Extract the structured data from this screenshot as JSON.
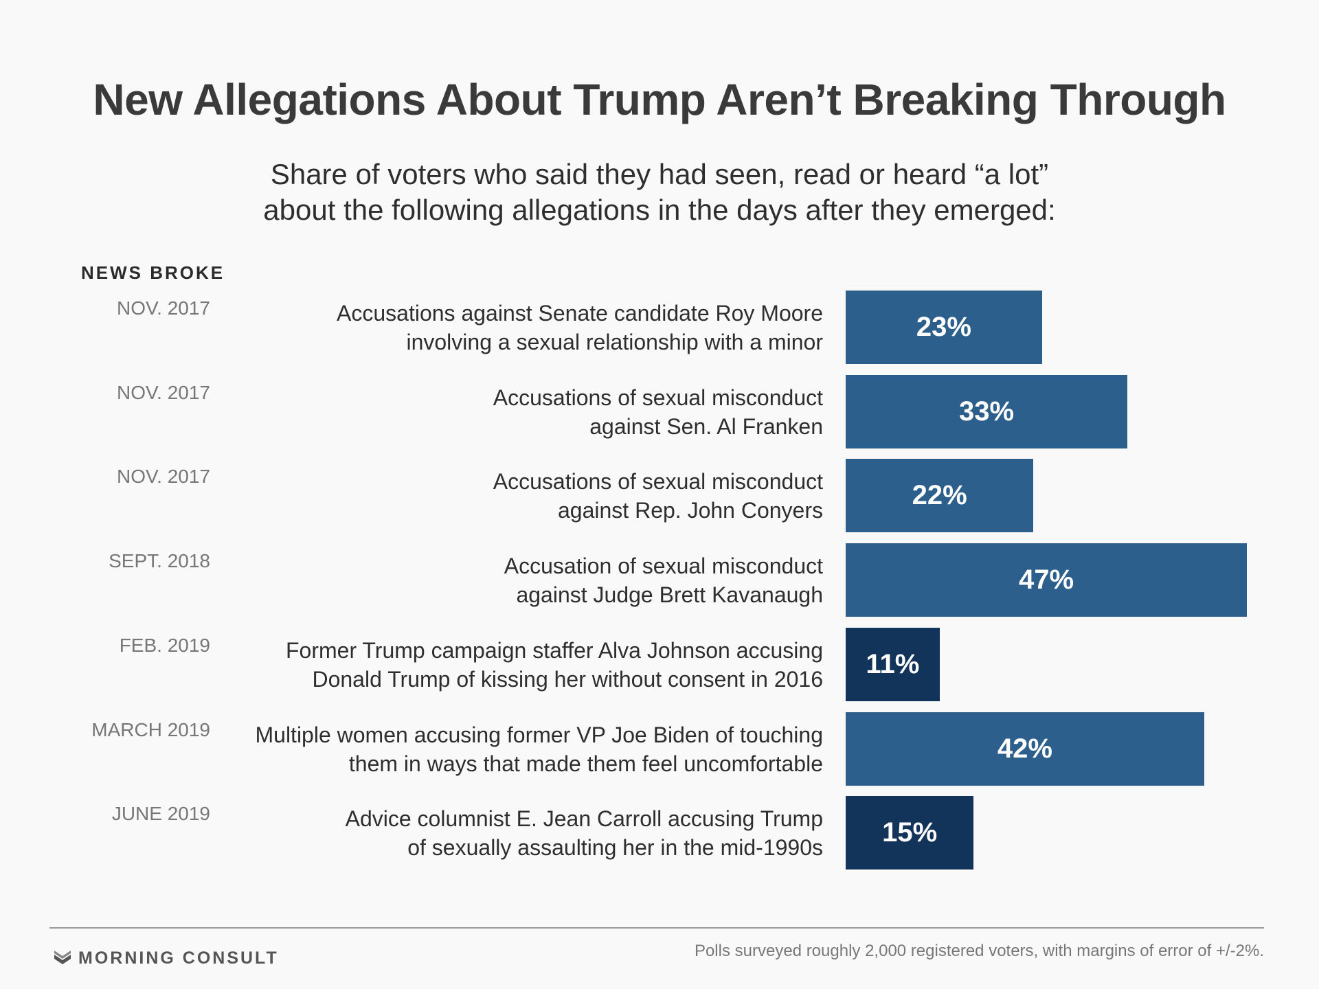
{
  "title": "New Allegations About Trump Aren’t Breaking Through",
  "subtitle_lines": [
    "Share of voters who said they had seen, read or heard “a lot”",
    "about the following allegations in the days after they emerged:"
  ],
  "column_header": "NEWS BROKE",
  "colors": {
    "bar": "#2d5f8d",
    "bar_trump": "#13345a",
    "background": "#f9f9f9"
  },
  "chart_data": {
    "type": "bar",
    "orientation": "horizontal",
    "title": "New Allegations About Trump Aren’t Breaking Through",
    "xlim": [
      0,
      50
    ],
    "grid": false,
    "categories": [
      "Accusations against Senate candidate Roy Moore involving a sexual relationship with a minor",
      "Accusations of sexual misconduct against Sen. Al Franken",
      "Accusations of sexual misconduct against Rep. John Conyers",
      "Accusation of sexual misconduct against Judge Brett Kavanaugh",
      "Former Trump campaign staffer Alva Johnson accusing Donald Trump of kissing her without consent in 2016",
      "Multiple women accusing former VP Joe Biden of touching them in ways that made them feel uncomfortable",
      "Advice columnist E. Jean Carroll accusing Trump of sexually assaulting her in the mid-1990s"
    ],
    "values": [
      23,
      33,
      22,
      47,
      11,
      42,
      15
    ],
    "rows": [
      {
        "date": "NOV. 2017",
        "lines": [
          "Accusations against Senate candidate Roy Moore",
          "involving a sexual relationship with a minor"
        ],
        "value": 23,
        "label": "23%",
        "trump": false
      },
      {
        "date": "NOV. 2017",
        "lines": [
          "Accusations of sexual misconduct",
          "against Sen. Al Franken"
        ],
        "value": 33,
        "label": "33%",
        "trump": false
      },
      {
        "date": "NOV. 2017",
        "lines": [
          "Accusations of sexual misconduct",
          "against Rep. John Conyers"
        ],
        "value": 22,
        "label": "22%",
        "trump": false
      },
      {
        "date": "SEPT. 2018",
        "lines": [
          "Accusation of sexual misconduct",
          "against Judge Brett Kavanaugh"
        ],
        "value": 47,
        "label": "47%",
        "trump": false
      },
      {
        "date": "FEB. 2019",
        "lines": [
          "Former Trump campaign staffer Alva Johnson accusing",
          "Donald Trump of kissing her without consent in 2016"
        ],
        "value": 11,
        "label": "11%",
        "trump": true
      },
      {
        "date": "MARCH 2019",
        "lines": [
          "Multiple women accusing former VP Joe Biden of touching",
          "them in ways that made them feel uncomfortable"
        ],
        "value": 42,
        "label": "42%",
        "trump": false
      },
      {
        "date": "JUNE 2019",
        "lines": [
          "Advice columnist E. Jean Carroll accusing Trump",
          "of sexually assaulting her in the mid-1990s"
        ],
        "value": 15,
        "label": "15%",
        "trump": true
      }
    ]
  },
  "footer": {
    "logo_icon": "morning-consult-logo-icon",
    "brand": "MORNING CONSULT",
    "note": "Polls surveyed roughly 2,000 registered voters, with margins of error of +/-2%."
  }
}
